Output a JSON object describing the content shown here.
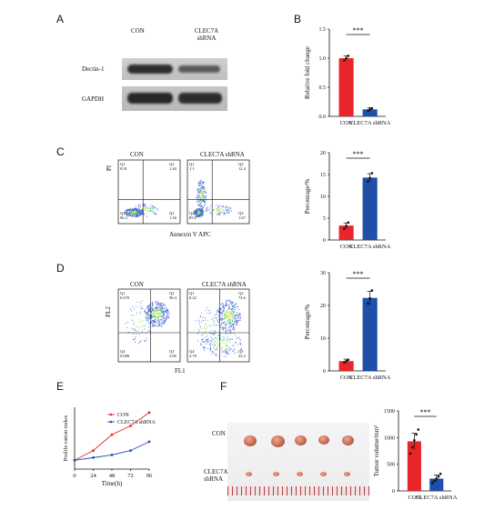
{
  "panels": {
    "A": {
      "letter": "A",
      "lanes": [
        "CON",
        "CLEC7A shRNA"
      ],
      "rows": [
        "Dectin-1",
        "GAPDH"
      ]
    },
    "B": {
      "letter": "B",
      "ylabel": "Relative fold change",
      "yticks": [
        "0.0",
        "0.5",
        "1.0",
        "1.5"
      ],
      "categories": [
        "CON",
        "CLEC7A shRNA"
      ],
      "sig": "***"
    },
    "C": {
      "letter": "C",
      "plots": [
        {
          "title": "CON",
          "q1": "Q1",
          "q1v": "0.91",
          "q2": "Q2",
          "q2v": "1.40",
          "q3": "Q3",
          "q3v": "1.36",
          "q4": "Q4",
          "q4v": "96.3"
        },
        {
          "title": "CLEC7A shRNA",
          "q1": "Q1",
          "q1v": "1.1",
          "q2": "Q2",
          "q2v": "12.4",
          "q3": "Q3",
          "q3v": "1.67",
          "q4": "Q4",
          "q4v": "85.0"
        }
      ],
      "ylabel": "PI",
      "xlabel": "Annexin V APC",
      "bar_ylabel": "Percentage/%",
      "bar_yticks": [
        "0",
        "5",
        "10",
        "15",
        "20"
      ],
      "categories": [
        "CON",
        "CLEC7A shRNA"
      ],
      "sig": "***"
    },
    "D": {
      "letter": "D",
      "plots": [
        {
          "title": "CON",
          "q1": "Q1",
          "q1v": "0.670",
          "q2": "Q2",
          "q2v": "96.4",
          "q3": "Q3",
          "q3v": "2.86",
          "q4": "Q4",
          "q4v": "0.088"
        },
        {
          "title": "CLEC7A  shRNA",
          "q1": "Q1",
          "q1v": "0.22",
          "q2": "Q2",
          "q2v": "74.6",
          "q3": "Q3",
          "q3v": "22.3",
          "q4": "Q4",
          "q4v": "2.78"
        }
      ],
      "ylabel": "FL2",
      "xlabel": "FL1",
      "bar_ylabel": "Percentage/%",
      "bar_yticks": [
        "0",
        "10",
        "20",
        "30"
      ],
      "categories": [
        "CON",
        "CLEC7A shRNA"
      ],
      "sig": "***"
    },
    "E": {
      "letter": "E",
      "ylabel": "Prolife ration index",
      "xlabel": "Time(h)",
      "xticks": [
        "0",
        "24",
        "48",
        "72",
        "96"
      ],
      "legend": [
        "CON",
        "CLEC7A shRNA"
      ]
    },
    "F": {
      "letter": "F",
      "row_labels": [
        "CON",
        "CLEC7A shRNA"
      ],
      "ylabel": "Tumor volume/mm³",
      "yticks": [
        "0",
        "500",
        "1000",
        "1500"
      ],
      "categories": [
        "CON",
        "CLEC7A shRNA"
      ],
      "sig": "***"
    }
  },
  "chart_data": [
    {
      "type": "bar",
      "panel": "B",
      "categories": [
        "CON",
        "CLEC7A shRNA"
      ],
      "values": [
        1.0,
        0.12
      ],
      "errors": [
        0.04,
        0.03
      ],
      "points": [
        [
          0.96,
          1.0,
          1.04
        ],
        [
          0.1,
          0.12,
          0.14
        ]
      ],
      "ylim": [
        0,
        1.5
      ],
      "colors": [
        "#e8262a",
        "#1f4fa8"
      ]
    },
    {
      "type": "bar",
      "panel": "C",
      "categories": [
        "CON",
        "CLEC7A shRNA"
      ],
      "values": [
        3.3,
        14.3
      ],
      "errors": [
        0.6,
        0.9
      ],
      "points": [
        [
          2.6,
          3.2,
          4.0
        ],
        [
          13.4,
          14.2,
          15.3
        ]
      ],
      "ylim": [
        0,
        20
      ],
      "colors": [
        "#e8262a",
        "#1f4fa8"
      ]
    },
    {
      "type": "bar",
      "panel": "D",
      "categories": [
        "CON",
        "CLEC7A shRNA"
      ],
      "values": [
        3.0,
        22.3
      ],
      "errors": [
        0.6,
        2.0
      ],
      "points": [
        [
          2.6,
          3.0,
          3.4
        ],
        [
          20.6,
          22.2,
          24.6
        ]
      ],
      "ylim": [
        0,
        30
      ],
      "colors": [
        "#e8262a",
        "#1f4fa8"
      ]
    },
    {
      "type": "line",
      "panel": "E",
      "x": [
        0,
        24,
        48,
        72,
        96
      ],
      "series": [
        {
          "name": "CON",
          "values": [
            1.0,
            2.1,
            3.9,
            4.9,
            6.4
          ],
          "color": "#e8262a"
        },
        {
          "name": "CLEC7A shRNA",
          "values": [
            1.0,
            1.3,
            1.6,
            2.1,
            3.1
          ],
          "color": "#1f4fa8"
        }
      ],
      "ylim": [
        0,
        7
      ]
    },
    {
      "type": "bar",
      "panel": "F",
      "categories": [
        "CON",
        "CLEC7A shRNA"
      ],
      "values": [
        930,
        230
      ],
      "errors": [
        150,
        70
      ],
      "points": [
        [
          700,
          820,
          950,
          1060,
          1150
        ],
        [
          150,
          190,
          230,
          270,
          320
        ]
      ],
      "ylim": [
        0,
        1500
      ],
      "colors": [
        "#e8262a",
        "#1f4fa8"
      ]
    }
  ]
}
